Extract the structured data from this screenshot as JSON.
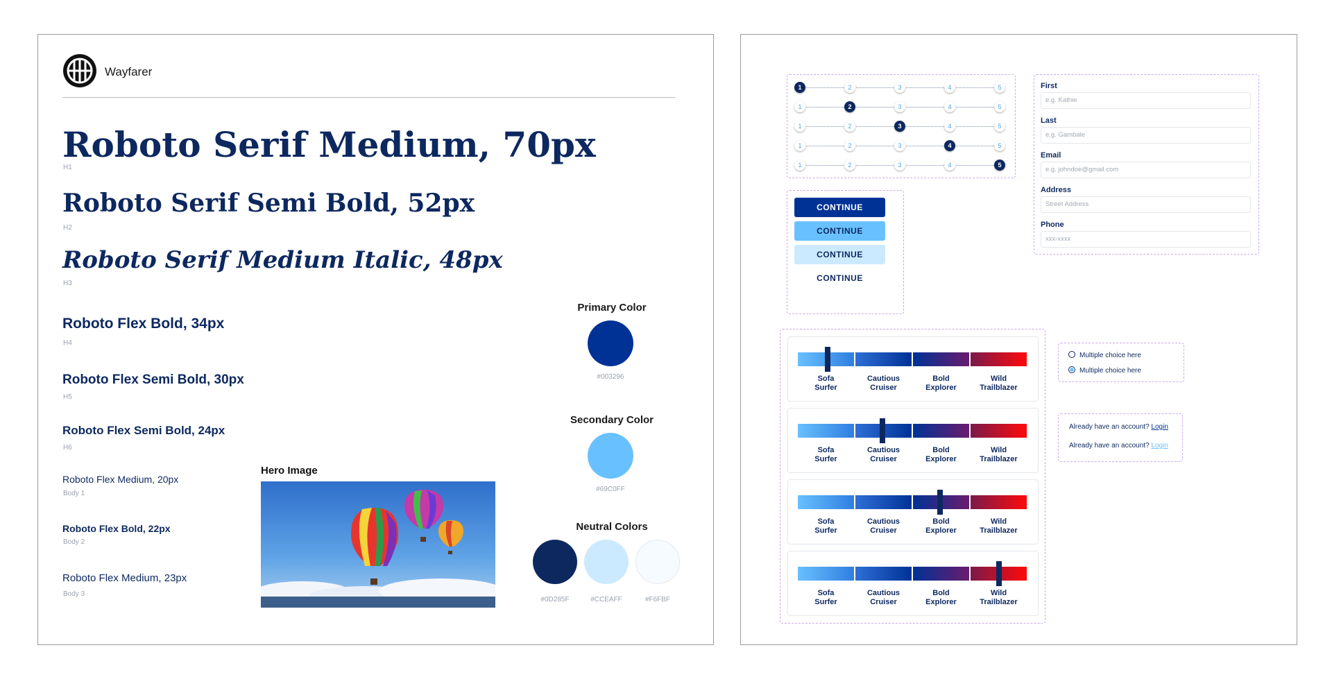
{
  "brand": {
    "name": "Wayfarer",
    "logo_icon": "globe-icon"
  },
  "typography": [
    {
      "sample": "Roboto Serif Medium, 70px",
      "caption": "H1"
    },
    {
      "sample": "Roboto Serif Semi Bold, 52px",
      "caption": "H2"
    },
    {
      "sample": "Roboto Serif Medium Italic, 48px",
      "caption": "H3"
    },
    {
      "sample": "Roboto Flex Bold, 34px",
      "caption": "H4"
    },
    {
      "sample": "Roboto Flex Semi Bold, 30px",
      "caption": "H5"
    },
    {
      "sample": "Roboto Flex Semi Bold, 24px",
      "caption": "H6"
    },
    {
      "sample": "Roboto Flex Medium, 20px",
      "caption": "Body 1"
    },
    {
      "sample": "Roboto Flex Bold, 22px",
      "caption": "Body 2"
    },
    {
      "sample": "Roboto Flex Medium, 23px",
      "caption": "Body 3"
    }
  ],
  "hero": {
    "label": "Hero Image"
  },
  "colors": {
    "primary": {
      "title": "Primary Color",
      "hex": "#003296"
    },
    "secondary": {
      "title": "Secondary Color",
      "hex": "#69C0FF"
    },
    "neutral": {
      "title": "Neutral Colors",
      "swatches": [
        {
          "hex": "#0D285F"
        },
        {
          "hex": "#CCEAFF"
        },
        {
          "hex": "#F6FBF"
        }
      ]
    }
  },
  "stepper": {
    "steps": [
      "1",
      "2",
      "3",
      "4",
      "5"
    ],
    "active_steps": [
      1,
      2,
      3,
      4,
      5
    ]
  },
  "buttons": {
    "primary_label": "CONTINUE",
    "secondary_label": "CONTINUE",
    "tertiary_label": "CONTINUE",
    "text_label": "CONTINUE",
    "colors": {
      "primary": "#003296",
      "secondary": "#69C0FF",
      "tertiary": "#CCEAFF"
    }
  },
  "form": {
    "first": {
      "label": "First",
      "placeholder": "e.g. Kathie"
    },
    "last": {
      "label": "Last",
      "placeholder": "e.g. Gambale"
    },
    "email": {
      "label": "Email",
      "placeholder": "e.g. johndoe@gmail.com"
    },
    "address": {
      "label": "Address",
      "placeholder": "Street Address"
    },
    "phone": {
      "label": "Phone",
      "placeholder": "xxx-xxxx"
    }
  },
  "scale": {
    "labels": [
      {
        "line1": "Sofa",
        "line2": "Surfer"
      },
      {
        "line1": "Cautious",
        "line2": "Cruiser"
      },
      {
        "line1": "Bold",
        "line2": "Explorer"
      },
      {
        "line1": "Wild",
        "line2": "Trailblazer"
      }
    ],
    "selected_positions": [
      0.13,
      0.37,
      0.62,
      0.88
    ]
  },
  "radio": {
    "options": [
      "Multiple choice here",
      "Multiple choice here"
    ],
    "selected_index": 1
  },
  "login": {
    "prompt": "Already have an account?",
    "link_text": "Login"
  }
}
